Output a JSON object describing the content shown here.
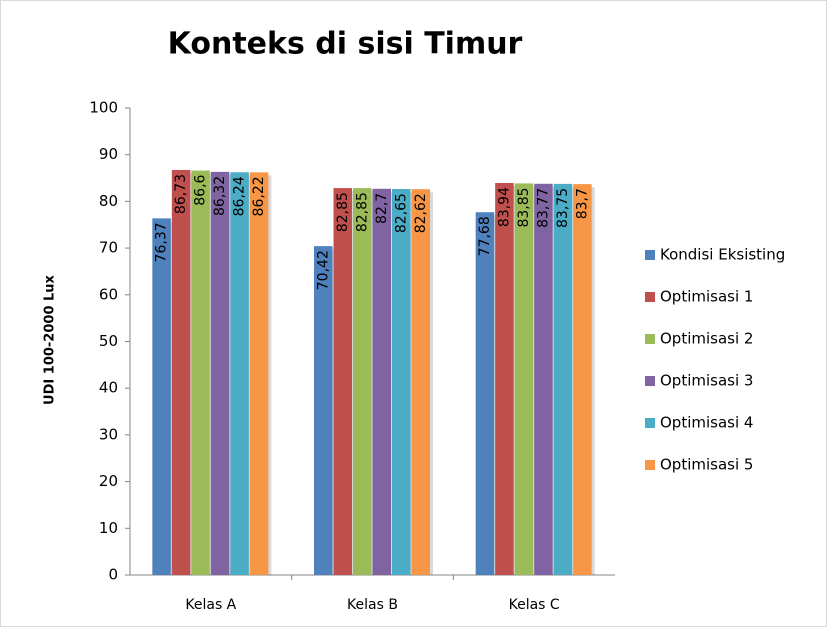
{
  "chart_data": {
    "type": "bar",
    "title": "Konteks di sisi Timur",
    "y_label": "UDI 100-2000  Lux",
    "categories": [
      "Kelas A",
      "Kelas B",
      "Kelas C"
    ],
    "series": [
      {
        "name": "Kondisi Eksisting",
        "color": "#4f81bd",
        "values": [
          76.37,
          70.42,
          77.68
        ],
        "value_labels": [
          "76,37",
          "70,42",
          "77,68"
        ]
      },
      {
        "name": "Optimisasi 1",
        "color": "#c0504d",
        "values": [
          86.73,
          82.85,
          83.94
        ],
        "value_labels": [
          "86,73",
          "82,85",
          "83,94"
        ]
      },
      {
        "name": "Optimisasi 2",
        "color": "#9bbb59",
        "values": [
          86.6,
          82.85,
          83.85
        ],
        "value_labels": [
          "86,6",
          "82,85",
          "83,85"
        ]
      },
      {
        "name": "Optimisasi 3",
        "color": "#8064a2",
        "values": [
          86.32,
          82.7,
          83.77
        ],
        "value_labels": [
          "86,32",
          "82,7",
          "83,77"
        ]
      },
      {
        "name": "Optimisasi 4",
        "color": "#4bacc6",
        "values": [
          86.24,
          82.65,
          83.75
        ],
        "value_labels": [
          "86,24",
          "82,65",
          "83,75"
        ]
      },
      {
        "name": "Optimisasi 5",
        "color": "#f79646",
        "values": [
          86.22,
          82.62,
          83.7
        ],
        "value_labels": [
          "86,22",
          "82,62",
          "83,7"
        ]
      }
    ],
    "ylim": [
      0,
      100
    ],
    "yticks": [
      0,
      10,
      20,
      30,
      40,
      50,
      60,
      70,
      80,
      90,
      100
    ],
    "grid": false,
    "legend": "right"
  }
}
